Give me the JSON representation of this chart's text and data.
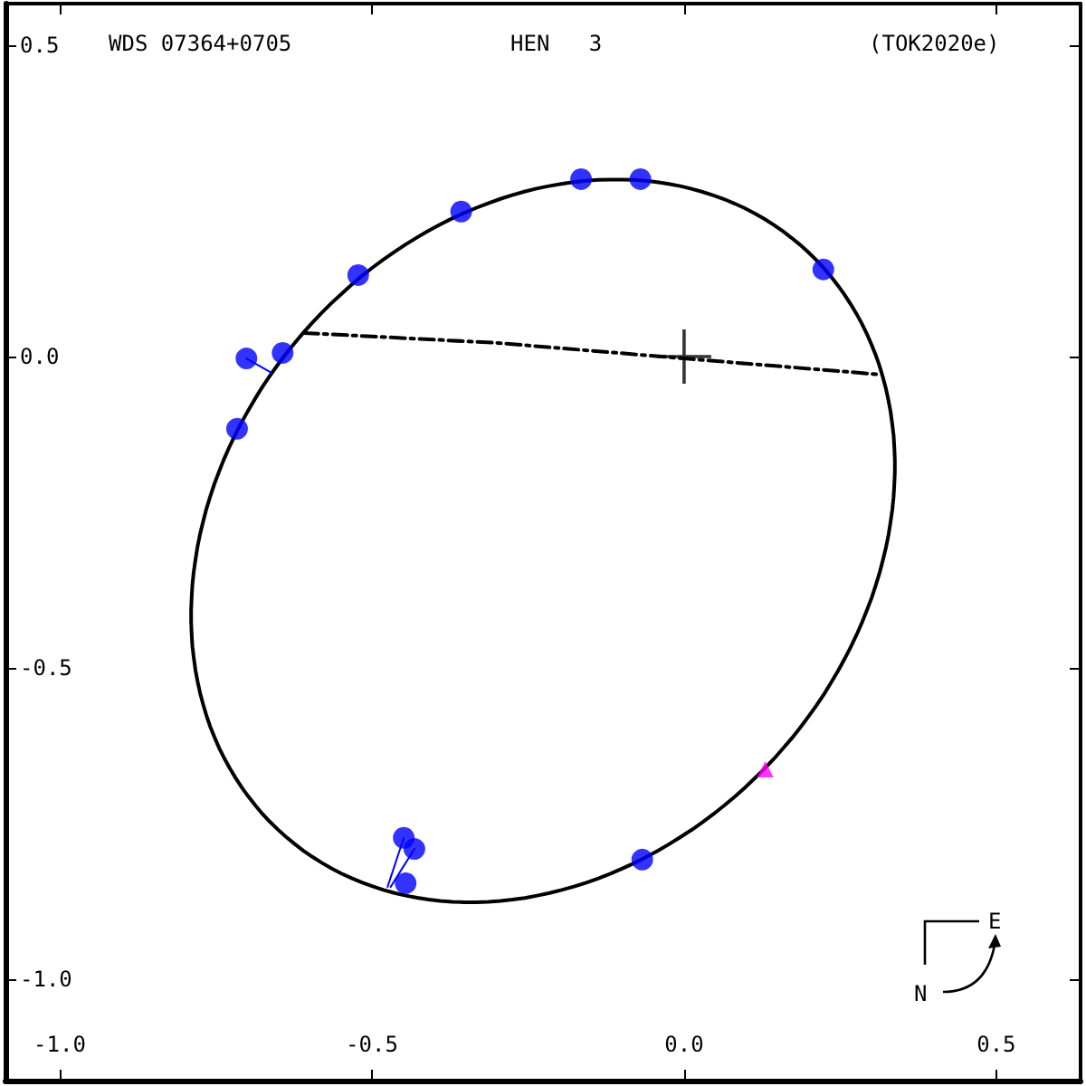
{
  "chart_data": {
    "type": "scatter",
    "annotations": [
      "WDS 07364+0705",
      "HEN   3",
      "(TOK2020e)",
      "N",
      "E"
    ],
    "xlim": [
      -1.087,
      0.635
    ],
    "ylim": [
      -1.163,
      0.567
    ],
    "xticks": [
      {
        "value": -1,
        "label": "-1.0"
      },
      {
        "value": -0.5,
        "label": "-0.5"
      },
      {
        "value": 0,
        "label": "0.0"
      },
      {
        "value": 0.5,
        "label": "0.5"
      }
    ],
    "yticks": [
      {
        "value": 0.5,
        "label": "0.5"
      },
      {
        "value": 0,
        "label": "0.0"
      },
      {
        "value": -0.5,
        "label": "-0.5"
      },
      {
        "value": -1,
        "label": "-1.0"
      }
    ],
    "grid": false,
    "series": [
      {
        "type": "line",
        "color": "#0000ff",
        "marker": "none",
        "line_style": "solid",
        "x": [
          -0.701,
          -0.661
        ],
        "values": [
          -0.003,
          -0.026
        ]
      },
      {
        "type": "line",
        "color": "#0000ff",
        "marker": "none",
        "line_style": "solid",
        "x": [
          -0.475,
          -0.449
        ],
        "values": [
          -0.852,
          -0.773
        ]
      },
      {
        "type": "line",
        "color": "#0000ff",
        "marker": "none",
        "line_style": "solid",
        "x": [
          -0.47,
          -0.432
        ],
        "values": [
          -0.852,
          -0.791
        ]
      },
      {
        "type": "line",
        "color": "#000000",
        "marker": "none",
        "line_style": "dashed",
        "x": [
          -0.609,
          -0.3,
          0,
          0.316
        ],
        "values": [
          0.038,
          0.022,
          -0.003,
          -0.029
        ]
      },
      {
        "color": "#0000ff",
        "marker": "circle",
        "x": [
          -0.701,
          -0.643,
          -0.716,
          -0.522,
          -0.357,
          -0.165,
          -0.07,
          0.223,
          -0.449,
          -0.432,
          -0.446,
          -0.067
        ],
        "values": [
          -0.003,
          0.006,
          -0.116,
          0.131,
          0.233,
          0.285,
          0.285,
          0.14,
          -0.773,
          -0.791,
          -0.846,
          -0.808
        ]
      },
      {
        "type": "scatter",
        "color": "#000000",
        "marker": "cross",
        "x": [
          0
        ],
        "values": [
          0
        ]
      },
      {
        "type": "scatter",
        "color": "#ff00ff",
        "marker": "triangle",
        "x": [
          0.13
        ],
        "values": [
          -0.663
        ]
      }
    ]
  }
}
